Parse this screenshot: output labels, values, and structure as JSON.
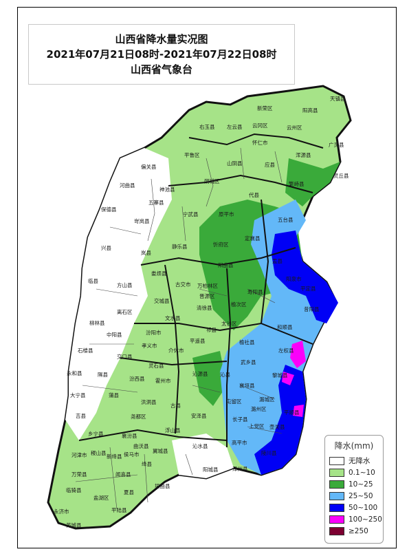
{
  "title": {
    "line1": "山西省降水量实况图",
    "line2": "2021年07月21日08时-2021年07月22日08时",
    "line3": "山西省气象台"
  },
  "legend": {
    "title": "降水(mm)",
    "items": [
      {
        "label": "无降水",
        "color": "#ffffff"
      },
      {
        "label": "0.1~10",
        "color": "#a6e388"
      },
      {
        "label": "10~25",
        "color": "#3aaa3a"
      },
      {
        "label": "25~50",
        "color": "#63b8f8"
      },
      {
        "label": "50~100",
        "color": "#0000f5"
      },
      {
        "label": "100~250",
        "color": "#fa00fa"
      },
      {
        "label": "≥250",
        "color": "#7d0031"
      }
    ]
  },
  "counties": [
    "天镇县",
    "阳高县",
    "新荣区",
    "左云县",
    "云冈区",
    "云州区",
    "右玉县",
    "广灵县",
    "怀仁市",
    "浑源县",
    "灵丘县",
    "平鲁区",
    "山阴县",
    "应县",
    "朔城区",
    "繁峙县",
    "偏关县",
    "神池县",
    "河曲县",
    "五寨县",
    "代县",
    "保德县",
    "岢岚县",
    "宁武县",
    "原平市",
    "五台县",
    "兴县",
    "岚县",
    "静乐县",
    "忻府区",
    "定襄县",
    "盂县",
    "临县",
    "方山县",
    "娄烦县",
    "古交市",
    "阳曲县",
    "万柏林区",
    "平定县",
    "阳泉市",
    "交城县",
    "晋源区",
    "寿阳县",
    "昔阳县",
    "柳林县",
    "离石区",
    "文水县",
    "清徐县",
    "榆次区",
    "中阳县",
    "汾阳市",
    "太谷区",
    "和顺县",
    "石楼县",
    "孝义市",
    "祁县",
    "平遥县",
    "介休市",
    "交口县",
    "榆社县",
    "左权县",
    "永和县",
    "隰县",
    "灵石县",
    "沁源县",
    "武乡县",
    "沁县",
    "黎城县",
    "大宁县",
    "蒲县",
    "汾西县",
    "霍州市",
    "襄垣县",
    "屯留区",
    "潞城区",
    "平顺县",
    "吉县",
    "洪洞县",
    "古县",
    "安泽县",
    "长子县",
    "潞州区",
    "乡宁县",
    "尧都区",
    "浮山县",
    "上党区",
    "壶关县",
    "襄汾县",
    "泽州县",
    "高平市",
    "陵川县",
    "河津市",
    "稷山县",
    "新绛县",
    "侯马市",
    "曲沃县",
    "翼城县",
    "沁水县",
    "阳城县",
    "绛县",
    "万荣县",
    "闻喜县",
    "垣曲县",
    "临猗县",
    "夏县",
    "盐湖区",
    "永济市",
    "平陆县",
    "芮城县"
  ]
}
